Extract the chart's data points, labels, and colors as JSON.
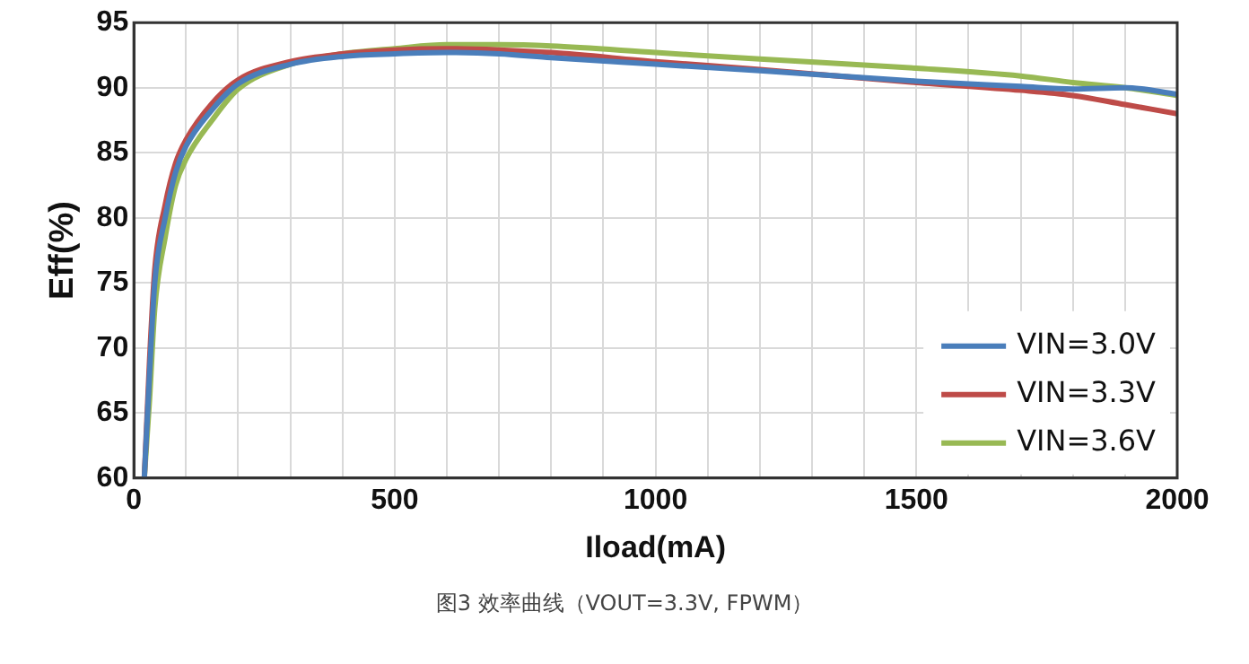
{
  "chart_data": {
    "type": "line",
    "xlabel": "Iload(mA)",
    "ylabel": "Eff(%)",
    "xlim": [
      0,
      2000
    ],
    "ylim": [
      60,
      95
    ],
    "xticks": [
      0,
      {
        "value": 100,
        "label": null
      },
      {
        "value": 200,
        "label": null
      },
      {
        "value": 300,
        "label": null
      },
      {
        "value": 400,
        "label": null
      },
      500,
      {
        "value": 600,
        "label": null
      },
      {
        "value": 700,
        "label": null
      },
      {
        "value": 800,
        "label": null
      },
      {
        "value": 900,
        "label": null
      },
      1000,
      {
        "value": 1100,
        "label": null
      },
      {
        "value": 1200,
        "label": null
      },
      {
        "value": 1300,
        "label": null
      },
      {
        "value": 1400,
        "label": null
      },
      1500,
      {
        "value": 1600,
        "label": null
      },
      {
        "value": 1700,
        "label": null
      },
      {
        "value": 1800,
        "label": null
      },
      {
        "value": 1900,
        "label": null
      },
      2000
    ],
    "yticks": [
      60,
      65,
      70,
      75,
      80,
      85,
      90,
      95
    ],
    "grid": true,
    "legend": "bottom right",
    "marker": "none",
    "line_style": "solid",
    "x": [
      20,
      30,
      40,
      60,
      80,
      100,
      150,
      200,
      300,
      400,
      500,
      600,
      700,
      800,
      1000,
      1200,
      1500,
      1700,
      1800,
      1900,
      2000
    ],
    "series": [
      {
        "name": "VIN=3.0V",
        "color": "#4a7ebb",
        "values": [
          60,
          68,
          75,
          80,
          83.5,
          85.5,
          88.3,
          90.3,
          91.8,
          92.4,
          92.6,
          92.7,
          92.6,
          92.3,
          91.8,
          91.3,
          90.5,
          90.1,
          89.9,
          90.0,
          89.5
        ]
      },
      {
        "name": "VIN=3.3V",
        "color": "#be4b48",
        "values": [
          60,
          69,
          76,
          81,
          84.2,
          86,
          88.8,
          90.6,
          92.0,
          92.6,
          92.9,
          93.0,
          92.9,
          92.7,
          92.0,
          91.4,
          90.4,
          89.8,
          89.4,
          88.7,
          88.0
        ]
      },
      {
        "name": "VIN=3.6V",
        "color": "#98b954",
        "values": [
          60,
          66,
          73,
          78.5,
          82.5,
          84.5,
          87.5,
          89.9,
          91.8,
          92.6,
          93.0,
          93.3,
          93.3,
          93.2,
          92.7,
          92.2,
          91.5,
          90.9,
          90.4,
          90.0,
          89.4
        ]
      }
    ],
    "annotations": [
      "图3 效率曲线（VOUT=3.3V, FPWM）"
    ]
  }
}
